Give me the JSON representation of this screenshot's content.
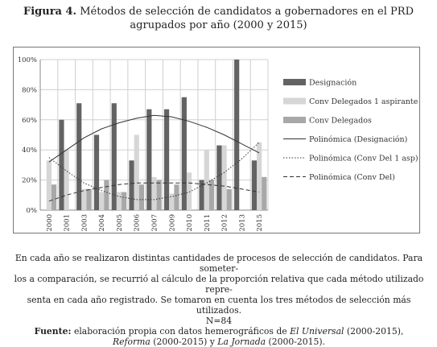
{
  "figure": {
    "label": "Figura 4.",
    "title_line1": "Métodos de selección de candidatos a gobernadores en el PRD",
    "title_line2": "agrupados por año (2000 y 2015)"
  },
  "caption": {
    "note_line1": "En cada año se realizaron distintas cantidades de procesos de selección de candidatos. Para someter-",
    "note_line2": "los a comparación, se recurrió al cálculo de la proporción relativa que cada método utilizado repre-",
    "note_line3": "senta en cada año registrado. Se tomaron en cuenta los tres métodos de selección más utilizados.",
    "n": "N=84",
    "source_label": "Fuente:",
    "source_text_a": "elaboración propia con datos hemerográficos de",
    "source_pub1": "El Universal",
    "source_years1": "(2000-2015),",
    "source_pub2": "Reforma",
    "source_years2": "(2000-2015) y",
    "source_pub3": "La Jornada",
    "source_years3": "(2000-2015)."
  },
  "chart_data": {
    "type": "bar",
    "categories": [
      "2000",
      "2001",
      "2003",
      "2004",
      "2005",
      "2006",
      "2007",
      "2009",
      "2010",
      "2011",
      "2012",
      "2013",
      "2015"
    ],
    "y_ticks": [
      "0%",
      "20%",
      "40%",
      "60%",
      "80%",
      "100%"
    ],
    "ylim": [
      0,
      100
    ],
    "legend_position": "right",
    "series": [
      {
        "name": "Designación",
        "color": "#636363",
        "values": [
          0,
          60,
          71,
          50,
          71,
          33,
          67,
          67,
          75,
          20,
          43,
          100,
          33
        ]
      },
      {
        "name": "Conv Delegados 1 aspirante",
        "color": "#d6d6d6",
        "values": [
          33,
          40,
          14,
          12,
          12,
          50,
          22,
          11,
          25,
          40,
          43,
          0,
          45
        ]
      },
      {
        "name": "Conv Delegados",
        "color": "#a8a8a8",
        "values": [
          17,
          0,
          14,
          20,
          12,
          17,
          20,
          17,
          0,
          20,
          14,
          0,
          22
        ]
      }
    ],
    "trendlines": [
      {
        "name": "Polinómica (Designación)",
        "style": "solid",
        "values": [
          32,
          40,
          48,
          54,
          58,
          61,
          63,
          62,
          59,
          55,
          50,
          44,
          38
        ]
      },
      {
        "name": "Polinómica (Conv Del 1 asp)",
        "style": "dotted",
        "values": [
          35,
          26,
          18,
          13,
          9,
          7,
          7,
          9,
          12,
          18,
          25,
          34,
          45
        ]
      },
      {
        "name": "Polinómica (Conv Del)",
        "style": "dashed",
        "values": [
          6,
          10,
          13,
          15,
          17,
          18,
          18,
          18,
          18,
          17,
          16,
          14,
          12
        ]
      }
    ]
  }
}
